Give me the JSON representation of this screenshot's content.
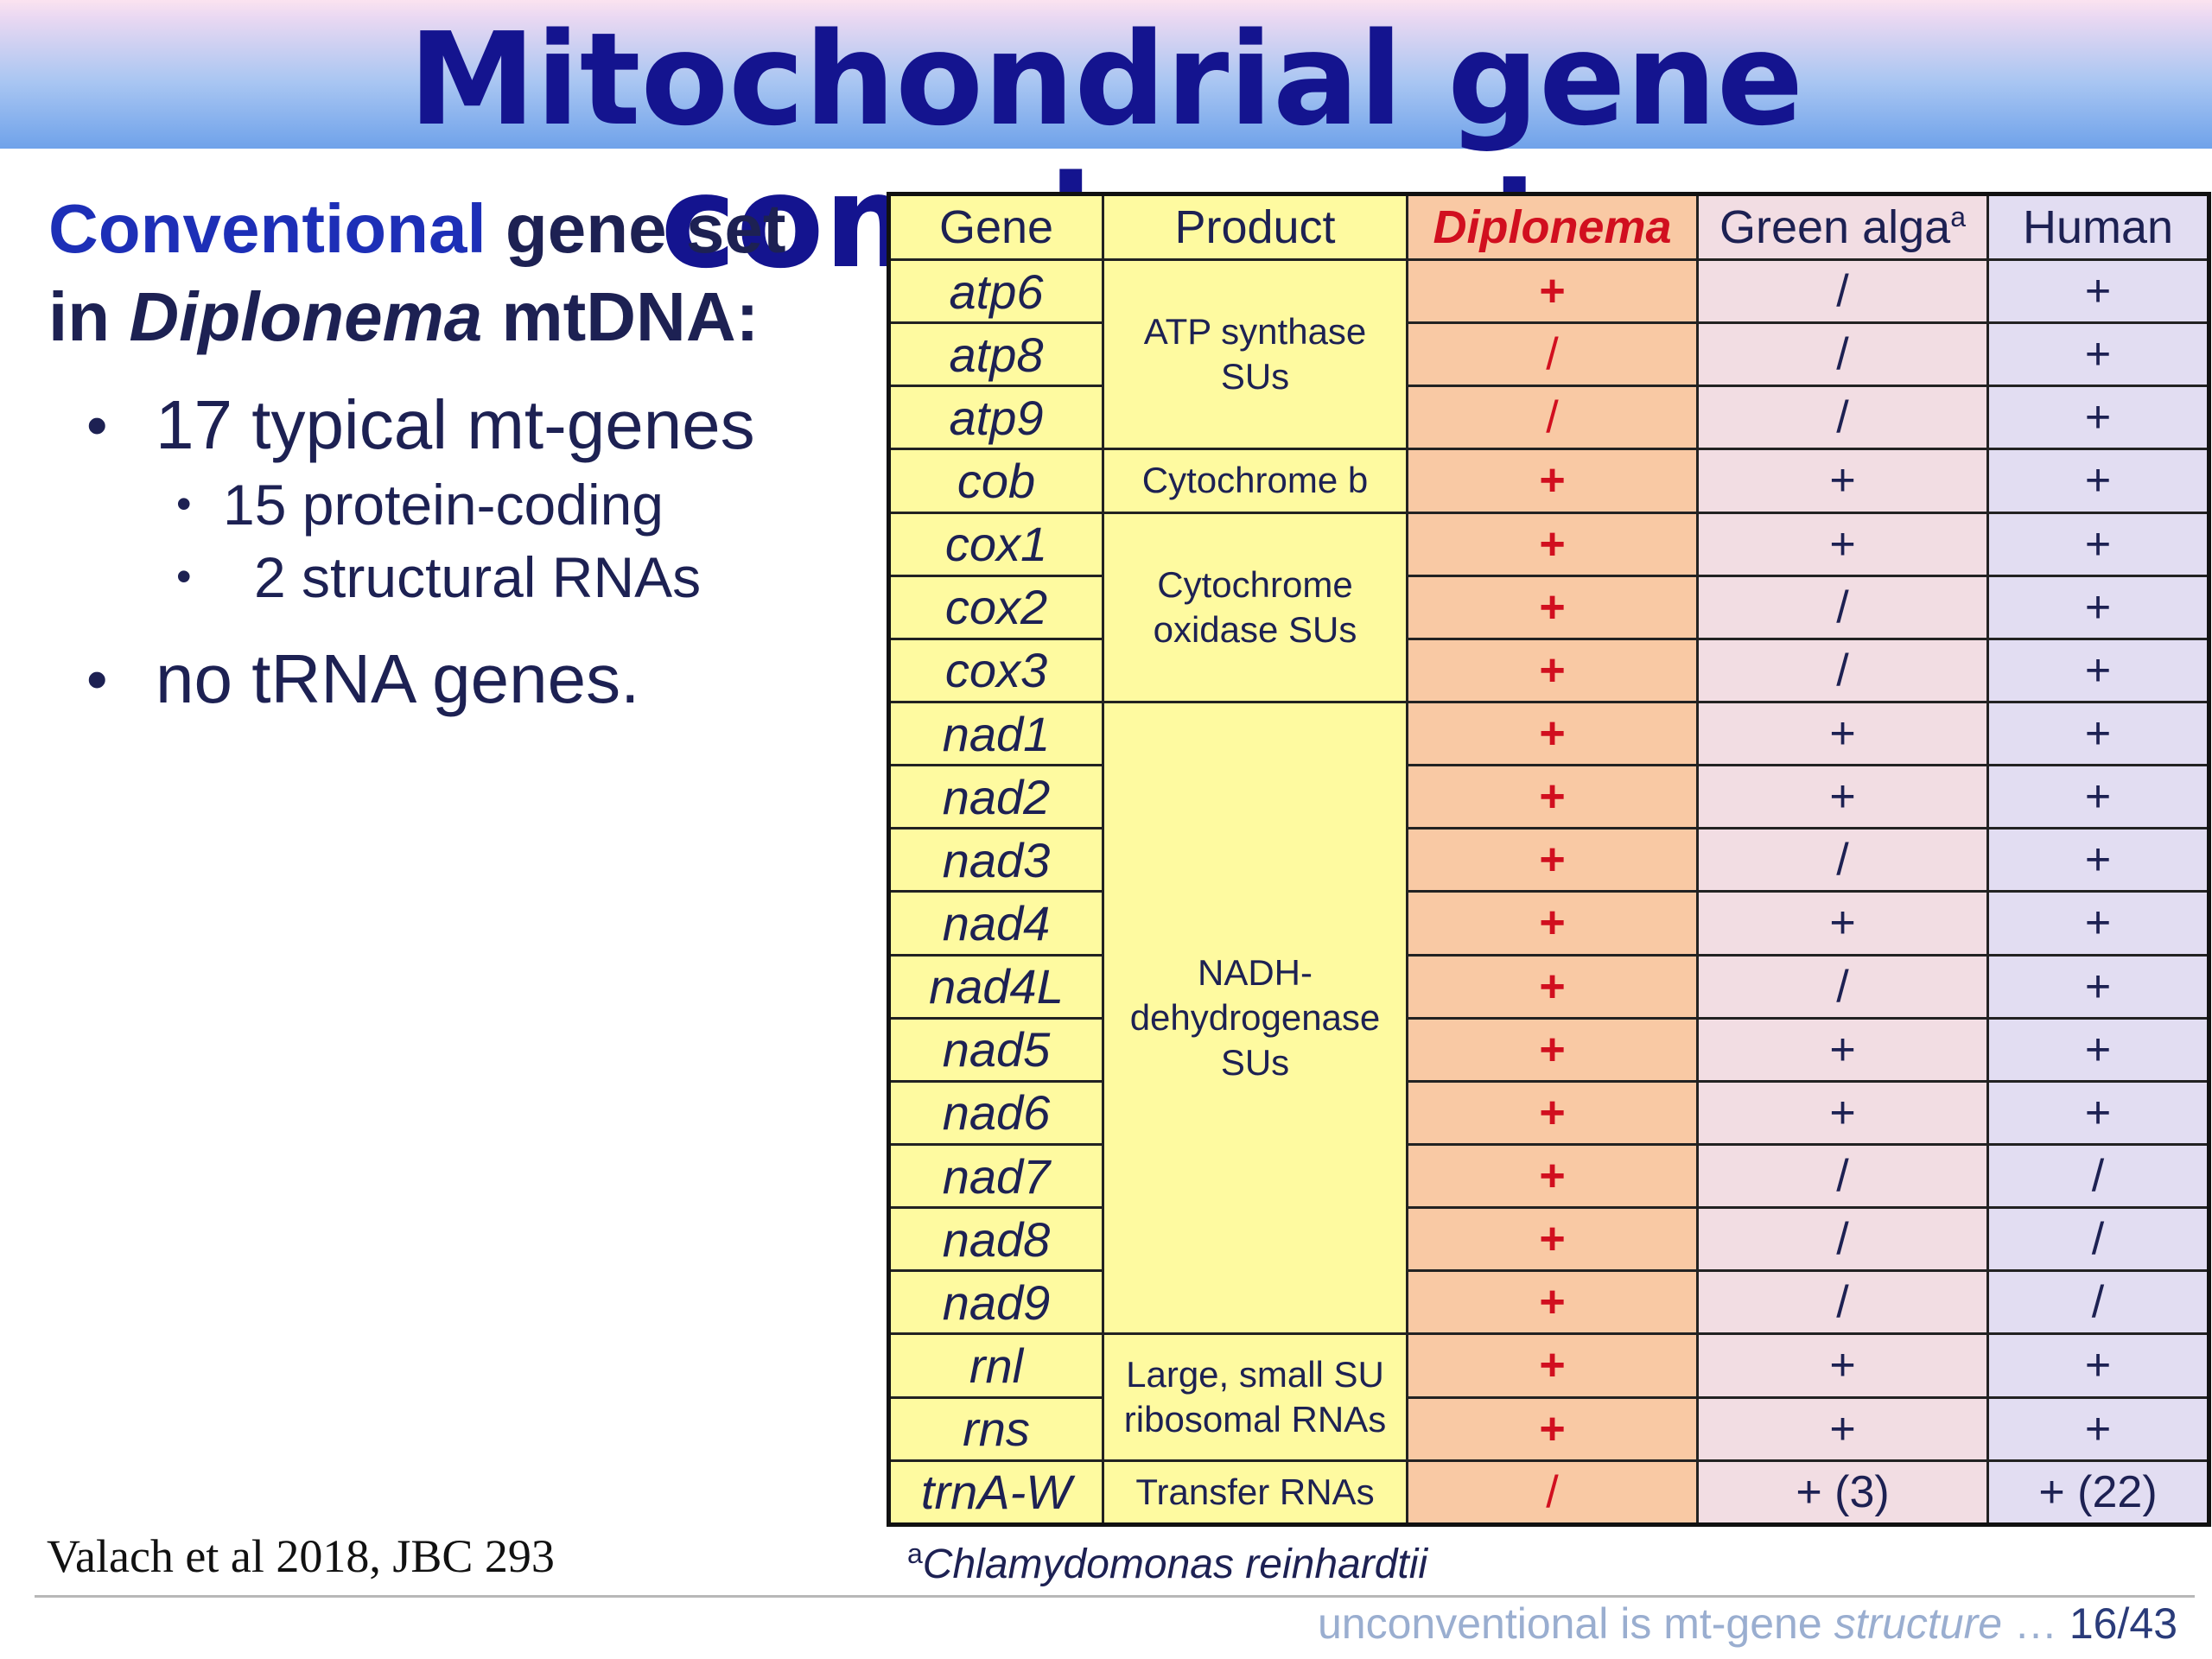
{
  "title": "Mitochondrial gene complement",
  "left": {
    "heading_blue": "Conventional",
    "heading_rest1": " gene set",
    "heading_line2_pre": "in ",
    "heading_line2_ital": "Diplonema",
    "heading_line2_post": " mtDNA:",
    "bullet1": "17 typical mt-genes",
    "sub1": "15 protein-coding",
    "sub2": "2 structural RNAs",
    "bullet2": "no tRNA genes."
  },
  "table": {
    "headers": {
      "gene": "Gene",
      "product": "Product",
      "diplonema": "Diplonema",
      "alga": "Green alga",
      "alga_sup": "a",
      "human": "Human"
    },
    "products": {
      "atp": [
        "ATP synthase",
        "SUs"
      ],
      "cob": "Cytochrome b",
      "cox": [
        "Cytochrome",
        "oxidase SUs"
      ],
      "nad": [
        "NADH-",
        "dehydrogenase",
        "SUs"
      ],
      "rrna": [
        "Large, small SU",
        "ribosomal RNAs"
      ],
      "trna": "Transfer RNAs"
    },
    "rows": [
      {
        "gene": "atp6",
        "diplonema": "+",
        "alga": "/",
        "human": "+"
      },
      {
        "gene": "atp8",
        "diplonema": "/",
        "alga": "/",
        "human": "+"
      },
      {
        "gene": "atp9",
        "diplonema": "/",
        "alga": "/",
        "human": "+"
      },
      {
        "gene": "cob",
        "diplonema": "+",
        "alga": "+",
        "human": "+"
      },
      {
        "gene": "cox1",
        "diplonema": "+",
        "alga": "+",
        "human": "+"
      },
      {
        "gene": "cox2",
        "diplonema": "+",
        "alga": "/",
        "human": "+"
      },
      {
        "gene": "cox3",
        "diplonema": "+",
        "alga": "/",
        "human": "+"
      },
      {
        "gene": "nad1",
        "diplonema": "+",
        "alga": "+",
        "human": "+"
      },
      {
        "gene": "nad2",
        "diplonema": "+",
        "alga": "+",
        "human": "+"
      },
      {
        "gene": "nad3",
        "diplonema": "+",
        "alga": "/",
        "human": "+"
      },
      {
        "gene": "nad4",
        "diplonema": "+",
        "alga": "+",
        "human": "+"
      },
      {
        "gene": "nad4L",
        "diplonema": "+",
        "alga": "/",
        "human": "+"
      },
      {
        "gene": "nad5",
        "diplonema": "+",
        "alga": "+",
        "human": "+"
      },
      {
        "gene": "nad6",
        "diplonema": "+",
        "alga": "+",
        "human": "+"
      },
      {
        "gene": "nad7",
        "diplonema": "+",
        "alga": "/",
        "human": "/"
      },
      {
        "gene": "nad8",
        "diplonema": "+",
        "alga": "/",
        "human": "/"
      },
      {
        "gene": "nad9",
        "diplonema": "+",
        "alga": "/",
        "human": "/"
      },
      {
        "gene": "rnl",
        "diplonema": "+",
        "alga": "+",
        "human": "+"
      },
      {
        "gene": "rns",
        "diplonema": "+",
        "alga": "+",
        "human": "+"
      },
      {
        "gene": "trnA-W",
        "diplonema": "/",
        "alga": "+ (3)",
        "human": "+  (22)"
      }
    ]
  },
  "footnote_sup": "a",
  "footnote": "Chlamydomonas reinhardtii",
  "citation": "Valach et al 2018, JBC 293",
  "bottom_plain": "unconventional is mt-gene ",
  "bottom_ital": "structure",
  "bottom_dots": " … ",
  "page": "16/43"
}
